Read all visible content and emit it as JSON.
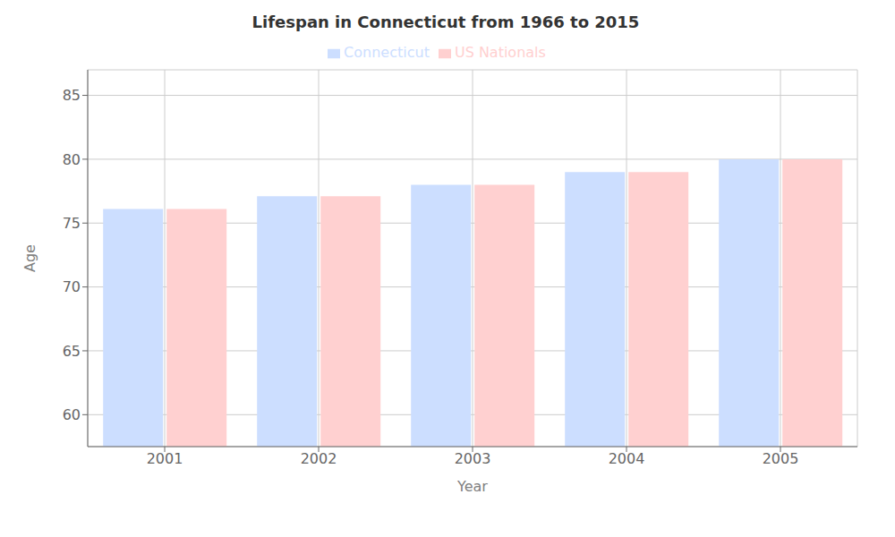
{
  "chart_data": {
    "type": "bar",
    "title": "Lifespan in Connecticut from 1966 to 2015",
    "xlabel": "Year",
    "ylabel": "Age",
    "categories": [
      "2001",
      "2002",
      "2003",
      "2004",
      "2005"
    ],
    "series": [
      {
        "name": "Connecticut",
        "color": "#ccdeff",
        "values": [
          76.1,
          77.1,
          78.0,
          79.0,
          80.0
        ]
      },
      {
        "name": "US Nationals",
        "color": "#ffd0d0",
        "values": [
          76.1,
          77.1,
          78.0,
          79.0,
          80.0
        ]
      }
    ],
    "ylim": [
      57.5,
      87
    ],
    "yticks": [
      60,
      65,
      70,
      75,
      80,
      85
    ],
    "grid": true,
    "legend": "top"
  }
}
